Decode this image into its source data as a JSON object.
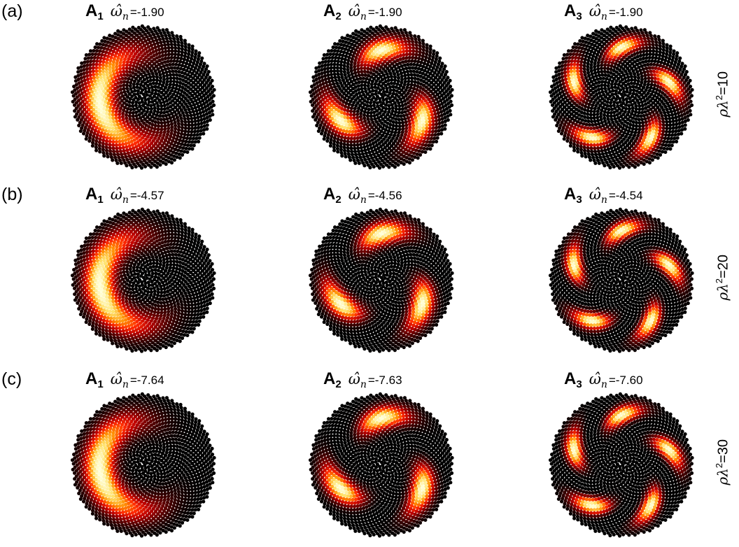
{
  "rows": [
    {
      "label": "(a)",
      "side_label_param": "ρλ",
      "side_label_exp": "2",
      "side_label_value": "=10",
      "panels": [
        {
          "mode": "A",
          "index": "1",
          "omega_symbol": "ω̂",
          "omega_sub": "n",
          "value": "=-1.90",
          "lobes": 1
        },
        {
          "mode": "A",
          "index": "2",
          "omega_symbol": "ω̂",
          "omega_sub": "n",
          "value": "=-1.90",
          "lobes": 3
        },
        {
          "mode": "A",
          "index": "3",
          "omega_symbol": "ω̂",
          "omega_sub": "n",
          "value": "=-1.90",
          "lobes": 5
        }
      ]
    },
    {
      "label": "(b)",
      "side_label_param": "ρλ",
      "side_label_exp": "2",
      "side_label_value": "=20",
      "panels": [
        {
          "mode": "A",
          "index": "1",
          "omega_symbol": "ω̂",
          "omega_sub": "n",
          "value": "=-4.57",
          "lobes": 1
        },
        {
          "mode": "A",
          "index": "2",
          "omega_symbol": "ω̂",
          "omega_sub": "n",
          "value": "=-4.56",
          "lobes": 3
        },
        {
          "mode": "A",
          "index": "3",
          "omega_symbol": "ω̂",
          "omega_sub": "n",
          "value": "=-4.54",
          "lobes": 5
        }
      ]
    },
    {
      "label": "(c)",
      "side_label_param": "ρλ",
      "side_label_exp": "2",
      "side_label_value": "=30",
      "panels": [
        {
          "mode": "A",
          "index": "1",
          "omega_symbol": "ω̂",
          "omega_sub": "n",
          "value": "=-7.64",
          "lobes": 1
        },
        {
          "mode": "A",
          "index": "2",
          "omega_symbol": "ω̂",
          "omega_sub": "n",
          "value": "=-7.63",
          "lobes": 3
        },
        {
          "mode": "A",
          "index": "3",
          "omega_symbol": "ω̂",
          "omega_sub": "n",
          "value": "=-7.60",
          "lobes": 5
        }
      ]
    }
  ],
  "colormap": [
    "#000000",
    "#5a0000",
    "#b80000",
    "#ff2a00",
    "#ff8c00",
    "#ffe066",
    "#ffffd8"
  ]
}
